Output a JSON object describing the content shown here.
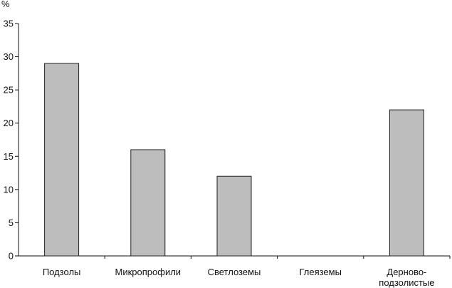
{
  "chart_data": {
    "type": "bar",
    "unit": "%",
    "categories": [
      "Подзолы",
      "Микропрофили",
      "Светлоземы",
      "Глеяземы",
      "Дерново-подзолистые"
    ],
    "category_lines": [
      [
        "Подзолы"
      ],
      [
        "Микропрофили"
      ],
      [
        "Светлоземы"
      ],
      [
        "Глеяземы"
      ],
      [
        "Дерново-",
        "подзолистые"
      ]
    ],
    "values": [
      29,
      16,
      12,
      0,
      22
    ],
    "ylim": [
      0,
      35
    ],
    "yticks": [
      0,
      5,
      10,
      15,
      20,
      25,
      30,
      35
    ],
    "grid": false,
    "bar_color": "#bdbdbd",
    "bar_edge_color": "#222222"
  }
}
